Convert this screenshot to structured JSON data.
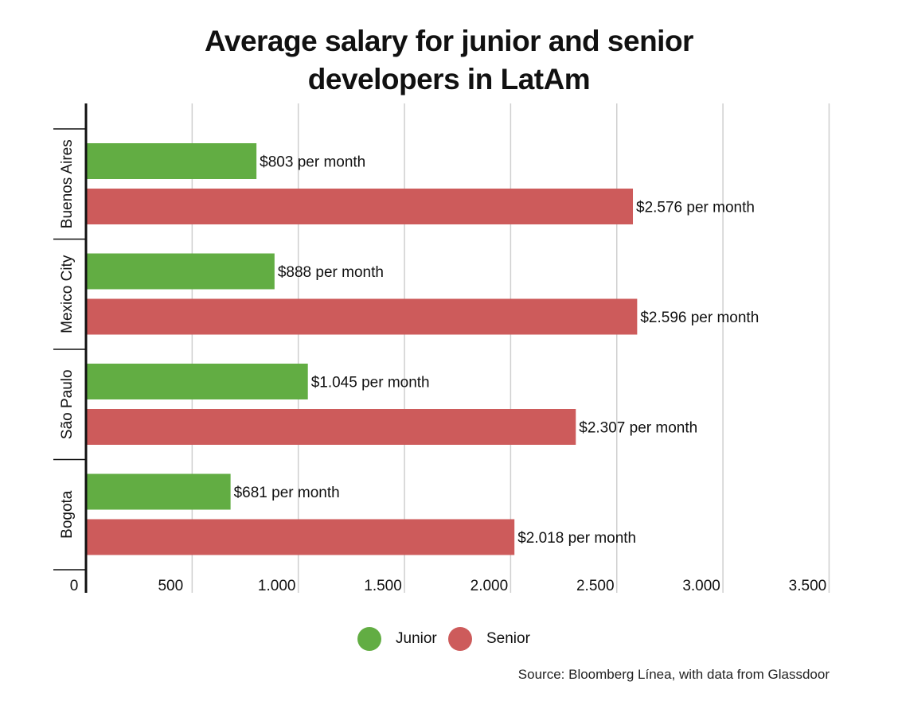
{
  "title_line1": "Average salary for junior and senior",
  "title_line2": "developers in LatAm",
  "source": "Source: Bloomberg Línea, with data from Glassdoor",
  "colors": {
    "junior": "#62ad43",
    "senior": "#cd5b5b",
    "grid": "#cfcfcf",
    "axis": "#111111"
  },
  "chart_data": {
    "type": "bar",
    "orientation": "horizontal",
    "title": "Average salary for junior and senior developers in LatAm",
    "categories": [
      "Buenos Aires",
      "Mexico City",
      "São Paulo",
      "Bogota"
    ],
    "series": [
      {
        "name": "Junior",
        "color": "#62ad43",
        "values": [
          803,
          888,
          1045,
          681
        ],
        "labels": [
          "$803 per month",
          "$888 per month",
          "$1.045 per month",
          "$681 per month"
        ]
      },
      {
        "name": "Senior",
        "color": "#cd5b5b",
        "values": [
          2576,
          2596,
          2307,
          2018
        ],
        "labels": [
          "$2.576 per month",
          "$2.596 per month",
          "$2.307 per month",
          "$2.018 per month"
        ]
      }
    ],
    "xlim": [
      0,
      3500
    ],
    "xticks": [
      0,
      500,
      1000,
      1500,
      2000,
      2500,
      3000,
      3500
    ],
    "xtick_labels": [
      "0",
      "500",
      "1.000",
      "1.500",
      "2.000",
      "2.500",
      "3.000",
      "3.500"
    ],
    "grid": true,
    "legend": "bottom-center"
  }
}
